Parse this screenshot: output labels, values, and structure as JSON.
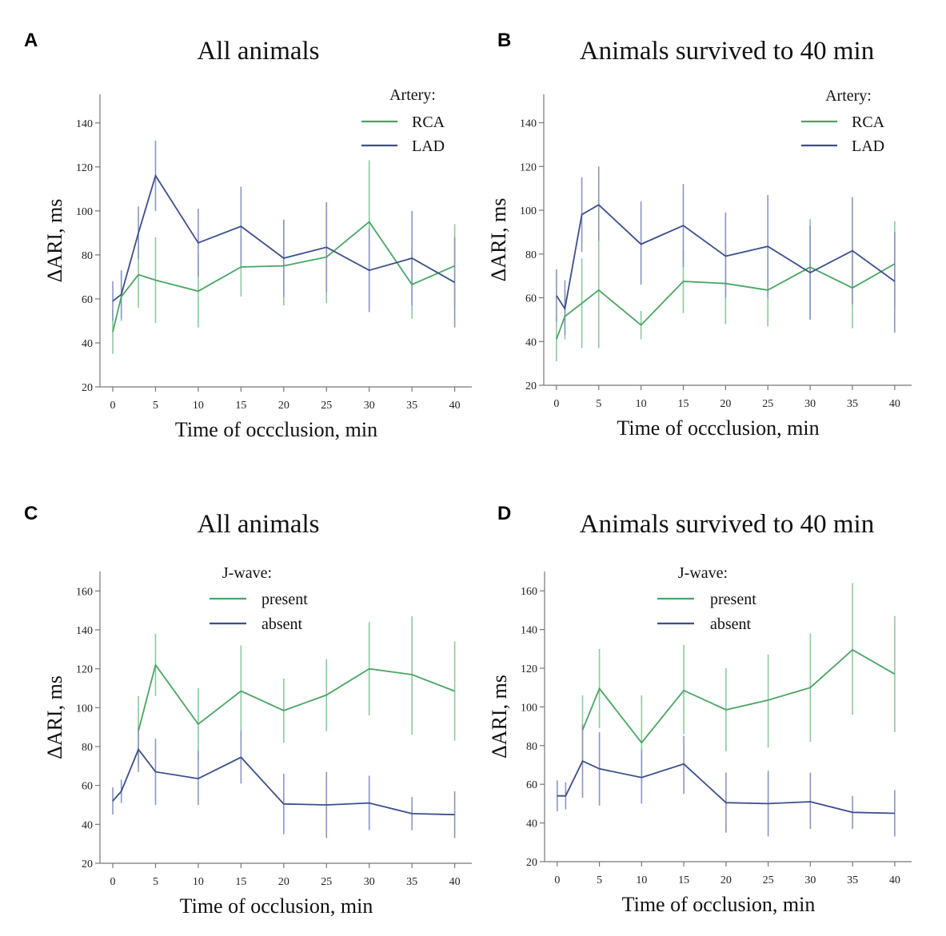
{
  "chart_data": [
    {
      "id": "A",
      "type": "line",
      "panel_label": "A",
      "title": "All animals",
      "xlabel": "Time of occclusion, min",
      "ylabel": "ΔARI, ms",
      "x": [
        0,
        1,
        3,
        5,
        10,
        15,
        20,
        25,
        30,
        35,
        40
      ],
      "x_ticks": [
        0,
        5,
        10,
        15,
        20,
        25,
        30,
        35,
        40
      ],
      "xlim": [
        -1.5,
        42
      ],
      "ylim": [
        20,
        153
      ],
      "y_ticks": [
        20,
        40,
        60,
        80,
        100,
        120,
        140
      ],
      "legend_title": "Artery:",
      "legend_position": "top-right",
      "series": [
        {
          "name": "RCA",
          "color": "#4aa564",
          "errcolor": "#8dc99c",
          "values": [
            45,
            61,
            71,
            68.5,
            63.5,
            74.5,
            75,
            79,
            95,
            66.5,
            75
          ],
          "lower": [
            35,
            50,
            56,
            49,
            47,
            61,
            57,
            58,
            67,
            51,
            56
          ],
          "upper": [
            55,
            72,
            88,
            88,
            80,
            89,
            96,
            100,
            123,
            82,
            94
          ]
        },
        {
          "name": "LAD",
          "color": "#3c4f8c",
          "errcolor": "#8a95c2",
          "values": [
            59,
            62,
            90,
            116,
            85.5,
            93,
            78.5,
            83.5,
            73,
            78.5,
            67.5
          ],
          "lower": [
            50,
            51,
            78,
            100,
            70,
            75,
            61,
            63,
            54,
            57,
            47
          ],
          "upper": [
            68,
            73,
            102,
            132,
            101,
            111,
            96,
            104,
            92,
            100,
            88
          ]
        }
      ]
    },
    {
      "id": "B",
      "type": "line",
      "panel_label": "B",
      "title": "Animals survived to 40 min",
      "xlabel": "Time of occclusion, min",
      "ylabel": "ΔARI, ms",
      "x": [
        0,
        1,
        3,
        5,
        10,
        15,
        20,
        25,
        30,
        35,
        40
      ],
      "x_ticks": [
        0,
        5,
        10,
        15,
        20,
        25,
        30,
        35,
        40
      ],
      "xlim": [
        -1.5,
        42
      ],
      "ylim": [
        20,
        153
      ],
      "y_ticks": [
        20,
        40,
        60,
        80,
        100,
        120,
        140
      ],
      "legend_title": "Artery:",
      "legend_position": "top-right",
      "series": [
        {
          "name": "RCA",
          "color": "#4aa564",
          "errcolor": "#8dc99c",
          "values": [
            41,
            51.5,
            57.5,
            63.5,
            47.5,
            67.5,
            66.5,
            63.5,
            74,
            64.5,
            75.5
          ],
          "lower": [
            31,
            41,
            37,
            37,
            41,
            53,
            48,
            47,
            50,
            46,
            56
          ],
          "upper": [
            51,
            62,
            78,
            90,
            54,
            82,
            85,
            80,
            96,
            83,
            95
          ]
        },
        {
          "name": "LAD",
          "color": "#3c4f8c",
          "errcolor": "#8a95c2",
          "values": [
            61,
            55,
            98,
            102.5,
            84.5,
            93,
            79,
            83.5,
            71.5,
            81.5,
            67.5
          ],
          "lower": [
            49,
            43,
            81,
            86,
            66,
            74,
            60,
            60,
            50,
            57,
            44
          ],
          "upper": [
            73,
            68,
            115,
            120,
            104,
            112,
            99,
            107,
            93,
            106,
            90
          ]
        }
      ]
    },
    {
      "id": "C",
      "type": "line",
      "panel_label": "C",
      "title": "All animals",
      "xlabel": "Time of occlusion, min",
      "ylabel": "ΔARI, ms",
      "x": [
        0,
        1,
        3,
        5,
        10,
        15,
        20,
        25,
        30,
        35,
        40
      ],
      "x_ticks": [
        0,
        5,
        10,
        15,
        20,
        25,
        30,
        35,
        40
      ],
      "xlim": [
        -1.5,
        42
      ],
      "ylim": [
        20,
        170
      ],
      "y_ticks": [
        20,
        40,
        60,
        80,
        100,
        120,
        140,
        160
      ],
      "legend_title": "J-wave:",
      "legend_position": "top-center",
      "series": [
        {
          "name": "present",
          "color": "#4aa564",
          "errcolor": "#8dc99c",
          "values": [
            null,
            null,
            88,
            122,
            91.5,
            108.5,
            98.5,
            106.5,
            120,
            117,
            108.5
          ],
          "lower": [
            null,
            null,
            70,
            106,
            73,
            85,
            82,
            88,
            96,
            86,
            83
          ],
          "upper": [
            null,
            null,
            106,
            138,
            110,
            132,
            115,
            125,
            144,
            147,
            134
          ]
        },
        {
          "name": "absent",
          "color": "#3c4f8c",
          "errcolor": "#8a95c2",
          "values": [
            52,
            57,
            78.5,
            67,
            63.5,
            74.5,
            50.5,
            50,
            51,
            45.5,
            45
          ],
          "lower": [
            45,
            51,
            67,
            50,
            50,
            61,
            35,
            33,
            37,
            37,
            33
          ],
          "upper": [
            59,
            63,
            90,
            84,
            78,
            88,
            66,
            67,
            65,
            54,
            57
          ]
        }
      ]
    },
    {
      "id": "D",
      "type": "line",
      "panel_label": "D",
      "title": "Animals survived to 40 min",
      "xlabel": "Time of occlusion, min",
      "ylabel": "ΔARI, ms",
      "x": [
        0,
        1,
        3,
        5,
        10,
        15,
        20,
        25,
        30,
        35,
        40
      ],
      "x_ticks": [
        0,
        5,
        10,
        15,
        20,
        25,
        30,
        35,
        40
      ],
      "xlim": [
        -1.5,
        42
      ],
      "ylim": [
        20,
        170
      ],
      "y_ticks": [
        20,
        40,
        60,
        80,
        100,
        120,
        140,
        160
      ],
      "legend_title": "J-wave:",
      "legend_position": "top-center",
      "series": [
        {
          "name": "present",
          "color": "#4aa564",
          "errcolor": "#8dc99c",
          "values": [
            null,
            null,
            88,
            109.5,
            81.5,
            108.5,
            98.5,
            103.5,
            110,
            129.5,
            117
          ],
          "lower": [
            null,
            null,
            70,
            89,
            60,
            86,
            77,
            79,
            82,
            96,
            87
          ],
          "upper": [
            null,
            null,
            106,
            130,
            106,
            132,
            120,
            127,
            138,
            164,
            147
          ]
        },
        {
          "name": "absent",
          "color": "#3c4f8c",
          "errcolor": "#8a95c2",
          "values": [
            54,
            54,
            72,
            68,
            63.5,
            70.5,
            50.5,
            50,
            51,
            45.5,
            45
          ],
          "lower": [
            46,
            47,
            53,
            49,
            50,
            55,
            35,
            33,
            37,
            37,
            33
          ],
          "upper": [
            62,
            61,
            91,
            87,
            78,
            85,
            66,
            67,
            66,
            54,
            57
          ]
        }
      ]
    }
  ]
}
